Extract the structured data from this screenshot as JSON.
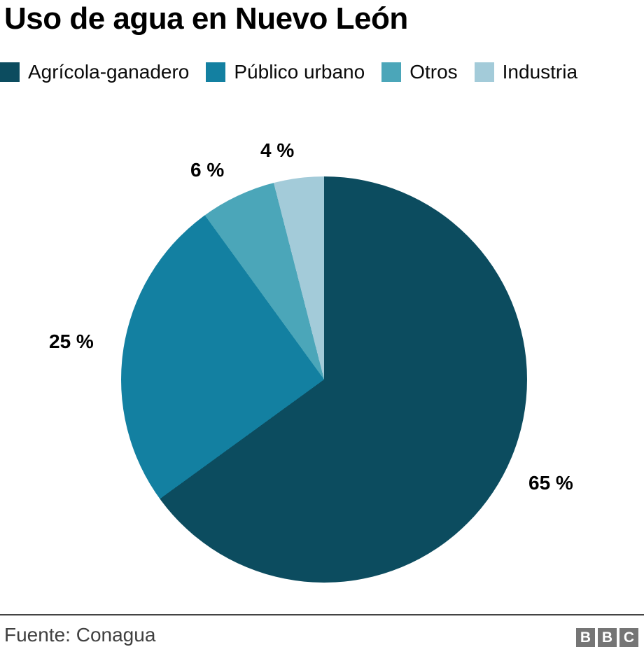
{
  "title": "Uso de agua en Nuevo León",
  "chart_data": {
    "type": "pie",
    "title": "Uso de agua en Nuevo León",
    "legend_position": "top",
    "start_angle_deg": 0,
    "direction": "clockwise",
    "slices": [
      {
        "label": "Agrícola-ganadero",
        "value": 65,
        "display": "65 %",
        "color": "#0C4C5F"
      },
      {
        "label": "Público urbano",
        "value": 25,
        "display": "25 %",
        "color": "#1380A1"
      },
      {
        "label": "Otros",
        "value": 6,
        "display": "6 %",
        "color": "#4BA6B9"
      },
      {
        "label": "Industria",
        "value": 4,
        "display": "4 %",
        "color": "#A3CBD9"
      }
    ],
    "source": "Fuente: Conagua"
  },
  "footer": {
    "source": "Fuente: Conagua",
    "logo_letters": [
      "B",
      "B",
      "C"
    ],
    "logo_color": "#757575"
  }
}
